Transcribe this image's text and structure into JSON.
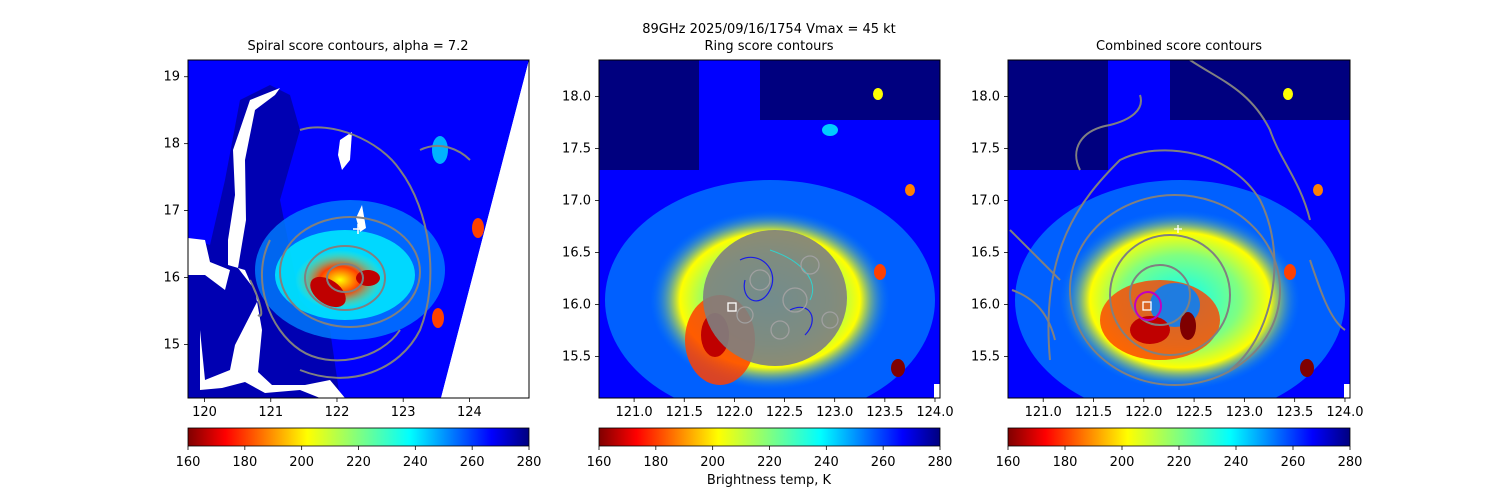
{
  "suptitle_line1": "89GHz  2025/09/16/1754    Vmax = 45 kt",
  "colorbar_label": "Brightness temp, K",
  "colormap": [
    "#7f0000",
    "#ff0000",
    "#ff8000",
    "#ffff00",
    "#80ff80",
    "#00ffff",
    "#0080ff",
    "#0000ff",
    "#00007f"
  ],
  "contour_color": "#808080",
  "chart_data": [
    {
      "type": "heatmap",
      "title": "Spiral score contours, alpha =  7.2",
      "xlim": [
        119.75,
        124.9
      ],
      "ylim": [
        14.2,
        19.25
      ],
      "xticks": [
        "120",
        "121",
        "122",
        "123",
        "124"
      ],
      "yticks": [
        "15",
        "16",
        "17",
        "18",
        "19"
      ],
      "xtick_values": [
        120,
        121,
        122,
        123,
        124
      ],
      "ytick_values": [
        15,
        16,
        17,
        18,
        19
      ],
      "colorbar": {
        "range": [
          160,
          280
        ],
        "ticks": [
          "160",
          "180",
          "200",
          "220",
          "240",
          "260",
          "280"
        ]
      },
      "markers": [
        {
          "type": "plus",
          "lon": 122.3,
          "lat": 16.75,
          "color": "#ffffff"
        }
      ]
    },
    {
      "type": "heatmap",
      "title": "Ring score contours",
      "xlim": [
        120.65,
        124.05
      ],
      "ylim": [
        15.1,
        18.35
      ],
      "xticks": [
        "121.0",
        "121.5",
        "122.0",
        "122.5",
        "123.0",
        "123.5",
        "124.0"
      ],
      "yticks": [
        "15.5",
        "16.0",
        "16.5",
        "17.0",
        "17.5",
        "18.0"
      ],
      "xtick_values": [
        121.0,
        121.5,
        122.0,
        122.5,
        123.0,
        123.5,
        124.0
      ],
      "ytick_values": [
        15.5,
        16.0,
        16.5,
        17.0,
        17.5,
        18.0
      ],
      "colorbar": {
        "range": [
          160,
          280
        ],
        "ticks": [
          "160",
          "180",
          "200",
          "220",
          "240",
          "260",
          "280"
        ]
      },
      "markers": [
        {
          "type": "square",
          "lon": 121.95,
          "lat": 15.98,
          "color": "#ffffff"
        }
      ]
    },
    {
      "type": "heatmap",
      "title": "Combined score contours",
      "xlim": [
        120.65,
        124.05
      ],
      "ylim": [
        15.1,
        18.35
      ],
      "xticks": [
        "121.0",
        "121.5",
        "122.0",
        "122.5",
        "123.0",
        "123.5",
        "124.0"
      ],
      "yticks": [
        "15.5",
        "16.0",
        "16.5",
        "17.0",
        "17.5",
        "18.0"
      ],
      "xtick_values": [
        121.0,
        121.5,
        122.0,
        122.5,
        123.0,
        123.5,
        124.0
      ],
      "ytick_values": [
        15.5,
        16.0,
        16.5,
        17.0,
        17.5,
        18.0
      ],
      "colorbar": {
        "range": [
          160,
          280
        ],
        "ticks": [
          "160",
          "180",
          "200",
          "220",
          "240",
          "260",
          "280"
        ]
      },
      "markers": [
        {
          "type": "square",
          "lon": 122.0,
          "lat": 15.98,
          "color": "#ffffff"
        },
        {
          "type": "plus",
          "lon": 122.3,
          "lat": 16.75,
          "color": "#ffffff"
        }
      ]
    }
  ]
}
